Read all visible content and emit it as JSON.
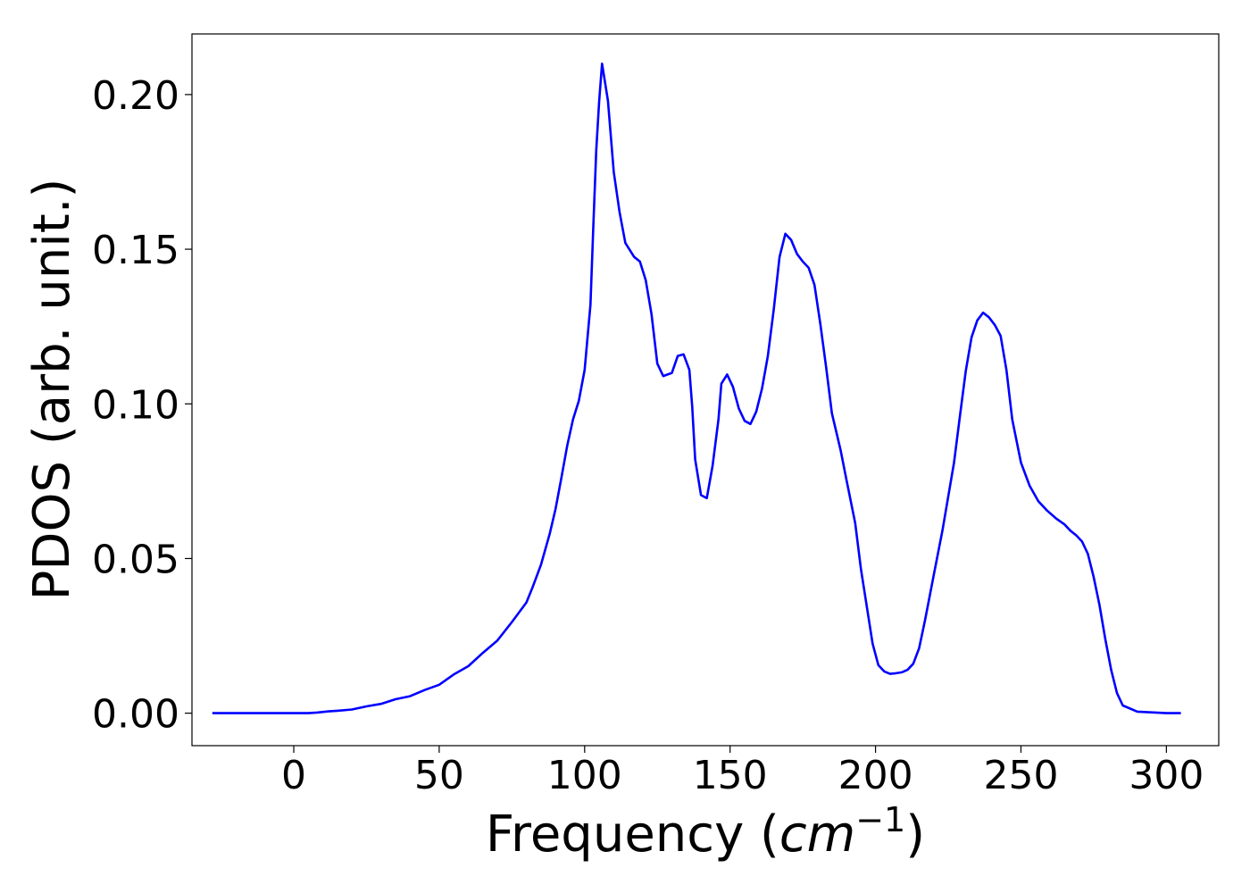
{
  "chart_data": {
    "type": "line",
    "title": "",
    "xlabel": "Frequency (cm^-1)",
    "xlabel_parts": {
      "prefix": "Frequency (",
      "italic": "cm",
      "superscript": "−1",
      "suffix": ")"
    },
    "ylabel": "PDOS (arb. unit.)",
    "xlim": [
      -35,
      318
    ],
    "ylim": [
      -0.0105,
      0.2196
    ],
    "xticks": [
      0,
      50,
      100,
      150,
      200,
      250,
      300
    ],
    "xtick_labels": [
      "0",
      "50",
      "100",
      "150",
      "200",
      "250",
      "300"
    ],
    "yticks": [
      0.0,
      0.05,
      0.1,
      0.15,
      0.2
    ],
    "ytick_labels": [
      "0.00",
      "0.05",
      "0.10",
      "0.15",
      "0.20"
    ],
    "grid": false,
    "legend": "none",
    "series": [
      {
        "color": "#0000ff",
        "x": [
          -28,
          -10,
          0,
          5,
          8,
          12,
          15,
          20,
          25,
          30,
          35,
          40,
          45,
          50,
          55,
          60,
          65,
          70,
          75,
          80,
          82,
          85,
          88,
          90,
          92,
          94,
          96,
          98,
          100,
          102,
          103,
          104,
          105,
          106,
          108,
          110,
          112,
          114,
          117,
          119,
          121,
          123,
          125,
          127,
          130,
          132,
          134,
          136,
          137,
          138,
          140,
          142,
          144,
          146,
          147,
          149,
          151,
          153,
          155,
          157,
          159,
          161,
          163,
          165,
          167,
          169,
          171,
          173,
          175,
          177,
          179,
          181,
          183,
          185,
          188,
          190,
          193,
          195,
          197,
          199,
          201,
          203,
          205,
          207,
          209,
          211,
          213,
          215,
          217,
          220,
          223,
          225,
          227,
          229,
          231,
          233,
          235,
          237,
          239,
          241,
          243,
          245,
          247,
          250,
          253,
          256,
          259,
          262,
          265,
          267,
          269,
          271,
          273,
          275,
          277,
          279,
          281,
          283,
          285,
          290,
          300,
          305
        ],
        "y": [
          0.0,
          0.0,
          0.0,
          0.0,
          0.0002,
          0.0006,
          0.0008,
          0.0012,
          0.0022,
          0.003,
          0.0045,
          0.0055,
          0.0075,
          0.0092,
          0.0125,
          0.0152,
          0.0195,
          0.0235,
          0.0295,
          0.0358,
          0.0405,
          0.048,
          0.058,
          0.066,
          0.076,
          0.0865,
          0.095,
          0.101,
          0.111,
          0.132,
          0.158,
          0.182,
          0.198,
          0.21,
          0.198,
          0.175,
          0.162,
          0.152,
          0.1475,
          0.146,
          0.14,
          0.129,
          0.113,
          0.109,
          0.11,
          0.1155,
          0.116,
          0.111,
          0.099,
          0.082,
          0.0705,
          0.0695,
          0.08,
          0.095,
          0.1065,
          0.1095,
          0.1055,
          0.0985,
          0.0945,
          0.0935,
          0.0975,
          0.105,
          0.1155,
          0.1305,
          0.1475,
          0.155,
          0.153,
          0.1485,
          0.146,
          0.144,
          0.1385,
          0.126,
          0.112,
          0.097,
          0.085,
          0.0755,
          0.0615,
          0.0465,
          0.0345,
          0.0225,
          0.0155,
          0.0135,
          0.0127,
          0.0129,
          0.0132,
          0.014,
          0.016,
          0.021,
          0.03,
          0.0445,
          0.059,
          0.07,
          0.081,
          0.096,
          0.1105,
          0.1215,
          0.127,
          0.1295,
          0.128,
          0.1255,
          0.122,
          0.111,
          0.095,
          0.081,
          0.0735,
          0.0685,
          0.0655,
          0.063,
          0.061,
          0.059,
          0.0575,
          0.0555,
          0.0515,
          0.044,
          0.035,
          0.024,
          0.014,
          0.0065,
          0.0025,
          0.0005,
          0.0,
          0.0
        ]
      }
    ]
  }
}
